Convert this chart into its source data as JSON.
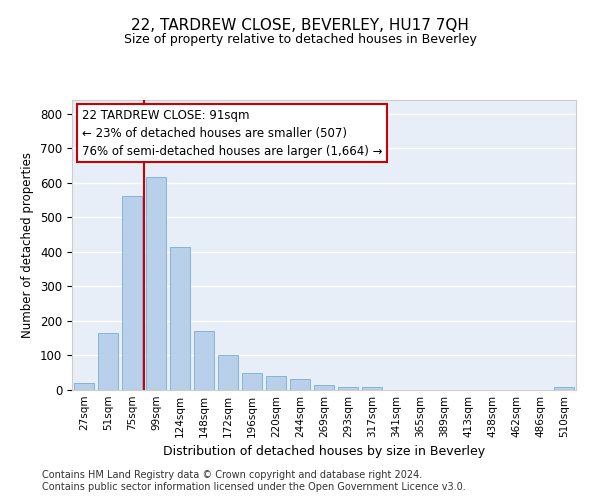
{
  "title": "22, TARDREW CLOSE, BEVERLEY, HU17 7QH",
  "subtitle": "Size of property relative to detached houses in Beverley",
  "xlabel": "Distribution of detached houses by size in Beverley",
  "ylabel": "Number of detached properties",
  "categories": [
    "27sqm",
    "51sqm",
    "75sqm",
    "99sqm",
    "124sqm",
    "148sqm",
    "172sqm",
    "196sqm",
    "220sqm",
    "244sqm",
    "269sqm",
    "293sqm",
    "317sqm",
    "341sqm",
    "365sqm",
    "389sqm",
    "413sqm",
    "438sqm",
    "462sqm",
    "486sqm",
    "510sqm"
  ],
  "values": [
    20,
    165,
    562,
    618,
    415,
    170,
    100,
    50,
    42,
    33,
    15,
    10,
    8,
    0,
    0,
    0,
    0,
    0,
    0,
    0,
    8
  ],
  "bar_color": "#b8d0ea",
  "bar_edge_color": "#7aadd4",
  "background_color": "#e8eef8",
  "grid_color": "#ffffff",
  "vline_color": "#cc0000",
  "vline_index": 3,
  "annotation_text": "22 TARDREW CLOSE: 91sqm\n← 23% of detached houses are smaller (507)\n76% of semi-detached houses are larger (1,664) →",
  "annotation_box_facecolor": "#ffffff",
  "annotation_box_edgecolor": "#cc0000",
  "ylim": [
    0,
    840
  ],
  "yticks": [
    0,
    100,
    200,
    300,
    400,
    500,
    600,
    700,
    800
  ],
  "footer1": "Contains HM Land Registry data © Crown copyright and database right 2024.",
  "footer2": "Contains public sector information licensed under the Open Government Licence v3.0."
}
